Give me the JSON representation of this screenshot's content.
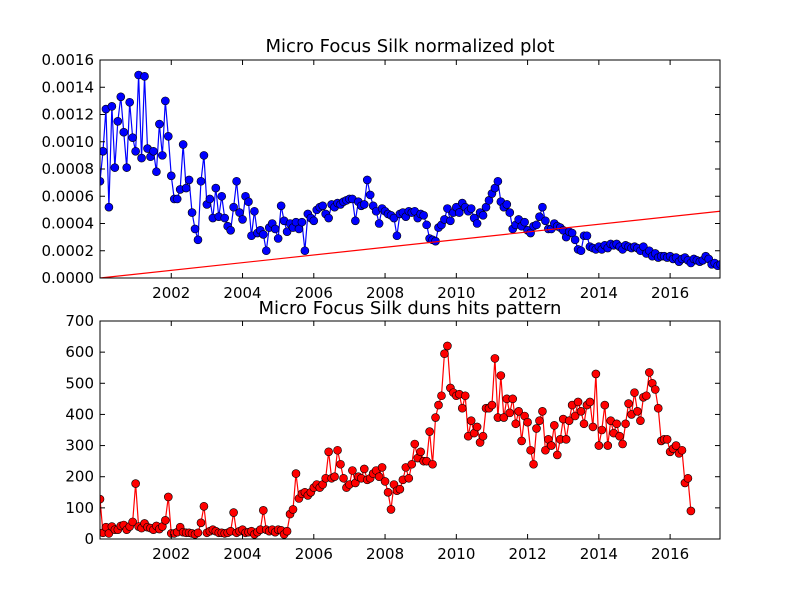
{
  "chart_data": [
    {
      "type": "line",
      "title": "Micro Focus Silk normalized plot",
      "xlabel": "",
      "ylabel": "",
      "xlim": [
        2000.0,
        2017.4
      ],
      "ylim": [
        0.0,
        0.0016
      ],
      "grid": false,
      "legend": "none",
      "xticks": [
        "2002",
        "2004",
        "2006",
        "2008",
        "2010",
        "2012",
        "2014",
        "2016"
      ],
      "xtick_values": [
        2002,
        2004,
        2006,
        2008,
        2010,
        2012,
        2014,
        2016
      ],
      "yticks": [
        "0.0000",
        "0.0002",
        "0.0004",
        "0.0006",
        "0.0008",
        "0.0010",
        "0.0012",
        "0.0014",
        "0.0016"
      ],
      "ytick_values": [
        0.0,
        0.0002,
        0.0004,
        0.0006,
        0.0008,
        0.001,
        0.0012,
        0.0014,
        0.0016
      ],
      "series": [
        {
          "color": "#0000ff",
          "marker": "circle",
          "x_start": 2000.0,
          "x_step_months": 1,
          "values": [
            0.00071,
            0.00093,
            0.00124,
            0.00052,
            0.00126,
            0.00081,
            0.00115,
            0.00133,
            0.00107,
            0.00081,
            0.00129,
            0.00103,
            0.00093,
            0.00149,
            0.00088,
            0.00148,
            0.00095,
            0.00089,
            0.00093,
            0.00078,
            0.00113,
            0.0009,
            0.0013,
            0.00104,
            0.00075,
            0.00058,
            0.00058,
            0.00065,
            0.00098,
            0.00066,
            0.00072,
            0.00048,
            0.00036,
            0.00028,
            0.00071,
            0.0009,
            0.00054,
            0.00058,
            0.00044,
            0.00066,
            0.00045,
            0.0006,
            0.00044,
            0.00038,
            0.00035,
            0.00052,
            0.00071,
            0.00048,
            0.00043,
            0.0006,
            0.00056,
            0.00031,
            0.00049,
            0.00033,
            0.00035,
            0.00032,
            0.0002,
            0.00037,
            0.0004,
            0.00036,
            0.00029,
            0.00053,
            0.00042,
            0.00034,
            0.0004,
            0.00037,
            0.00041,
            0.00036,
            0.00041,
            0.0002,
            0.00047,
            0.00044,
            0.00042,
            0.0005,
            0.00052,
            0.00053,
            0.00047,
            0.00044,
            0.00054,
            0.00052,
            0.00055,
            0.00054,
            0.00056,
            0.00057,
            0.00058,
            0.00058,
            0.00042,
            0.00056,
            0.00053,
            0.00054,
            0.00072,
            0.00061,
            0.00053,
            0.00049,
            0.0004,
            0.00051,
            0.00049,
            0.00047,
            0.00046,
            0.00044,
            0.00031,
            0.00047,
            0.00048,
            0.00045,
            0.00049,
            0.00048,
            0.00049,
            0.00044,
            0.00047,
            0.00046,
            0.00039,
            0.00029,
            0.00028,
            0.00027,
            0.00037,
            0.00039,
            0.00043,
            0.00051,
            0.00042,
            0.00048,
            0.00052,
            0.00048,
            0.00055,
            0.00052,
            0.00049,
            0.00051,
            0.00044,
            0.0004,
            0.00048,
            0.00046,
            0.00052,
            0.00057,
            0.00062,
            0.00066,
            0.00071,
            0.00056,
            0.00052,
            0.00054,
            0.00048,
            0.00036,
            0.00039,
            0.00043,
            0.00038,
            0.00041,
            0.00035,
            0.00033,
            0.00038,
            0.00039,
            0.00045,
            0.00052,
            0.00042,
            0.00036,
            0.00036,
            0.0004,
            0.00038,
            0.00037,
            0.00035,
            0.0003,
            0.00034,
            0.00033,
            0.00028,
            0.00021,
            0.0002,
            0.00031,
            0.00031,
            0.00023,
            0.00022,
            0.00021,
            0.00023,
            0.00021,
            0.00024,
            0.00022,
            0.00025,
            0.00024,
            0.00025,
            0.00023,
            0.00021,
            0.00024,
            0.00023,
            0.00022,
            0.00023,
            0.00022,
            0.0002,
            0.00023,
            0.00018,
            0.0002,
            0.00016,
            0.00018,
            0.00015,
            0.00016,
            0.00016,
            0.00015,
            0.00016,
            0.00014,
            0.00015,
            0.00012,
            0.00014,
            0.00015,
            0.00013,
            0.00011,
            0.00014,
            0.00013,
            0.00012,
            0.00013,
            0.00016,
            0.00014,
            0.0001,
            0.00011,
            9e-05,
            0.0001,
            9e-05,
            0.0001,
            9e-05,
            0.00011,
            8e-05,
            7e-05,
            8e-05,
            7e-05
          ]
        },
        {
          "color": "#ff0000",
          "marker": "none",
          "x": [
            2000.0,
            2017.4
          ],
          "values": [
            0.0,
            0.00049
          ]
        }
      ]
    },
    {
      "type": "line",
      "title": "Micro Focus Silk duns hits pattern",
      "xlabel": "",
      "ylabel": "",
      "xlim": [
        2000.0,
        2017.4
      ],
      "ylim": [
        0,
        700
      ],
      "grid": false,
      "legend": "none",
      "xticks": [
        "2002",
        "2004",
        "2006",
        "2008",
        "2010",
        "2012",
        "2014",
        "2016"
      ],
      "xtick_values": [
        2002,
        2004,
        2006,
        2008,
        2010,
        2012,
        2014,
        2016
      ],
      "yticks": [
        "0",
        "100",
        "200",
        "300",
        "400",
        "500",
        "600",
        "700"
      ],
      "ytick_values": [
        0,
        100,
        200,
        300,
        400,
        500,
        600,
        700
      ],
      "series": [
        {
          "color": "#ff0000",
          "marker": "circle",
          "x_start": 2000.0,
          "x_step_months": 1,
          "values": [
            128,
            20,
            38,
            18,
            40,
            30,
            30,
            42,
            45,
            30,
            40,
            55,
            178,
            40,
            35,
            50,
            38,
            35,
            30,
            42,
            32,
            40,
            60,
            135,
            18,
            18,
            22,
            38,
            22,
            20,
            20,
            18,
            15,
            20,
            52,
            105,
            20,
            25,
            30,
            25,
            20,
            20,
            18,
            20,
            25,
            85,
            20,
            25,
            30,
            20,
            22,
            25,
            15,
            22,
            30,
            92,
            30,
            25,
            30,
            22,
            30,
            28,
            15,
            25,
            80,
            95,
            210,
            130,
            145,
            150,
            140,
            150,
            165,
            175,
            165,
            175,
            195,
            280,
            195,
            200,
            285,
            240,
            195,
            165,
            175,
            220,
            180,
            200,
            195,
            225,
            190,
            195,
            210,
            220,
            200,
            230,
            185,
            150,
            95,
            175,
            155,
            160,
            190,
            230,
            195,
            240,
            305,
            260,
            280,
            250,
            250,
            345,
            240,
            390,
            430,
            460,
            595,
            620,
            485,
            470,
            460,
            465,
            420,
            460,
            330,
            380,
            340,
            360,
            310,
            330,
            420,
            420,
            430,
            580,
            390,
            525,
            390,
            450,
            405,
            450,
            370,
            410,
            315,
            395,
            375,
            285,
            240,
            355,
            380,
            410,
            285,
            320,
            300,
            365,
            270,
            320,
            385,
            320,
            380,
            430,
            395,
            440,
            410,
            370,
            430,
            440,
            360,
            530,
            300,
            350,
            430,
            300,
            380,
            340,
            370,
            330,
            305,
            370,
            435,
            400,
            470,
            410,
            380,
            455,
            460,
            535,
            500,
            480,
            420,
            315,
            320,
            320,
            280,
            290,
            300,
            275,
            285,
            180,
            195,
            90
          ]
        }
      ]
    }
  ]
}
